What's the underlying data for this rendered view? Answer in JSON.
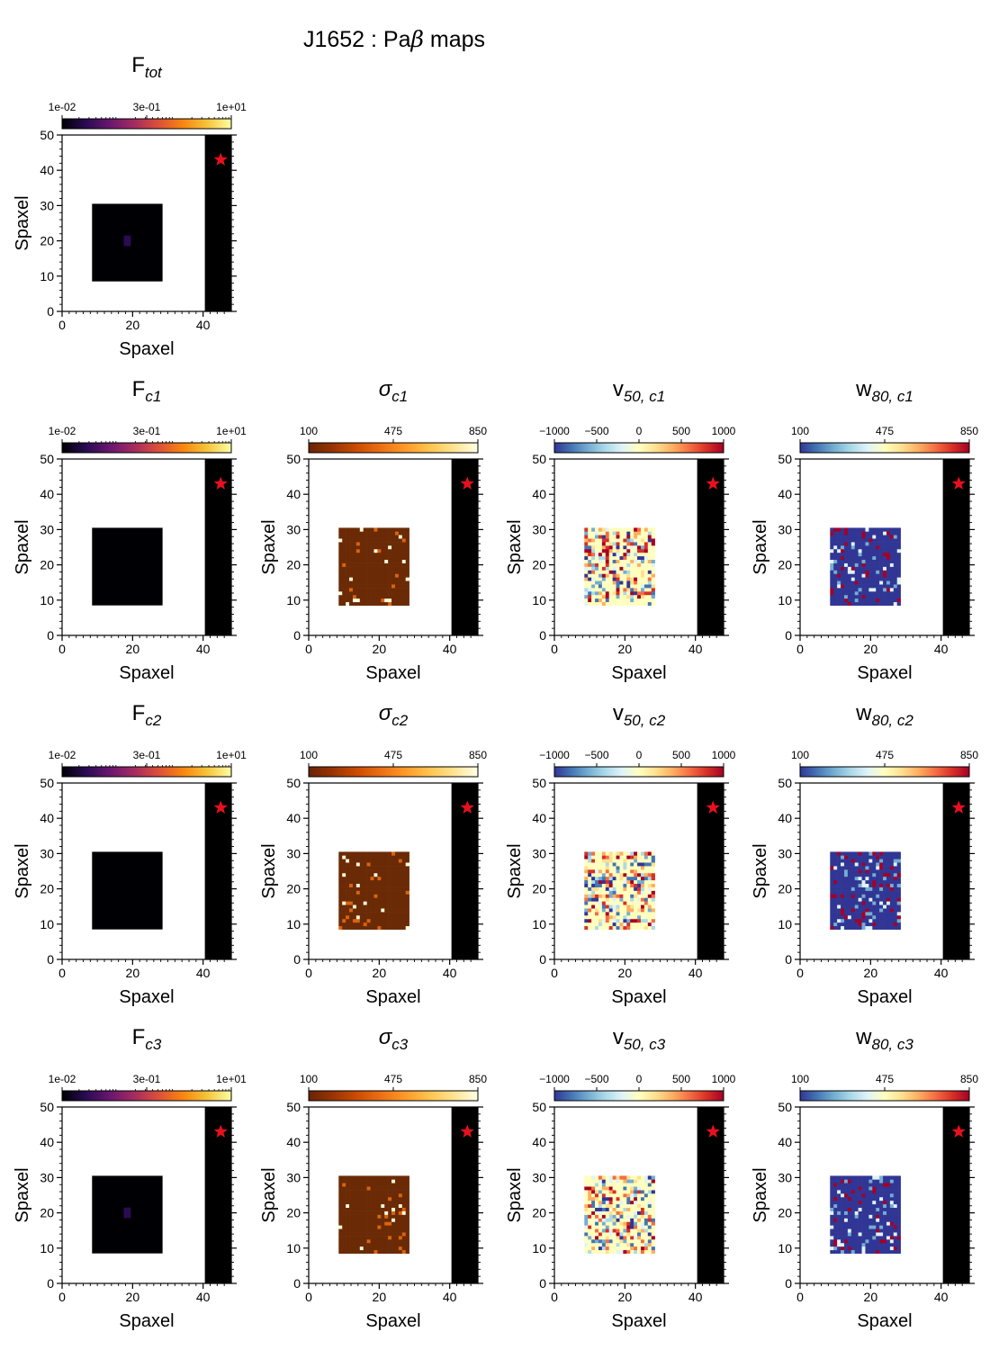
{
  "figure": {
    "title": "J1652 : Pa",
    "title_symbol": "β",
    "title_suffix": " maps"
  },
  "chart_data": [
    {
      "id": "ftot",
      "type": "heatmap",
      "title_main": "F",
      "title_sub": "tot",
      "title_italic": false,
      "colormap": "inferno",
      "colorbar_ticks": [
        "1e-02",
        "3e-01",
        "1e+01"
      ],
      "log_scale": true,
      "xlabel": "Spaxel",
      "ylabel": "Spaxel",
      "xlim": [
        0,
        48
      ],
      "ylim": [
        0,
        50
      ],
      "xticks": [
        "0",
        "20",
        "40"
      ],
      "yticks": [
        "0",
        "10",
        "20",
        "30",
        "40",
        "50"
      ],
      "data_region": {
        "x": [
          9,
          28
        ],
        "y": [
          9,
          30
        ]
      },
      "marker": {
        "symbol": "star",
        "x": 45,
        "y": 43,
        "color": "#e8101e"
      }
    },
    {
      "id": "fc1",
      "type": "heatmap",
      "title_main": "F",
      "title_sub": "c1",
      "title_italic": false,
      "colormap": "inferno",
      "colorbar_ticks": [
        "1e-02",
        "3e-01",
        "1e+01"
      ],
      "log_scale": true,
      "xlabel": "Spaxel",
      "ylabel": "Spaxel",
      "xlim": [
        0,
        48
      ],
      "ylim": [
        0,
        50
      ],
      "xticks": [
        "0",
        "20",
        "40"
      ],
      "yticks": [
        "0",
        "10",
        "20",
        "30",
        "40",
        "50"
      ],
      "data_region": {
        "x": [
          9,
          28
        ],
        "y": [
          9,
          30
        ]
      },
      "marker": {
        "symbol": "star",
        "x": 45,
        "y": 43,
        "color": "#e8101e"
      }
    },
    {
      "id": "sc1",
      "type": "heatmap",
      "title_main": "σ",
      "title_sub": "c1",
      "title_italic": true,
      "colormap": "YlOrBr_r",
      "colorbar_ticks": [
        "100",
        "475",
        "850"
      ],
      "log_scale": false,
      "xlabel": "Spaxel",
      "ylabel": "Spaxel",
      "xlim": [
        0,
        48
      ],
      "ylim": [
        0,
        50
      ],
      "xticks": [
        "0",
        "20",
        "40"
      ],
      "yticks": [
        "0",
        "10",
        "20",
        "30",
        "40",
        "50"
      ],
      "data_region": {
        "x": [
          9,
          28
        ],
        "y": [
          9,
          30
        ]
      },
      "marker": {
        "symbol": "star",
        "x": 45,
        "y": 43,
        "color": "#e8101e"
      }
    },
    {
      "id": "vc1",
      "type": "heatmap",
      "title_main": "v",
      "title_sub": "50, c1",
      "title_italic": false,
      "colormap": "RdYlBu_r",
      "colorbar_ticks": [
        "−1000",
        "−500",
        "0",
        "500",
        "1000"
      ],
      "log_scale": false,
      "xlabel": "Spaxel",
      "ylabel": "Spaxel",
      "xlim": [
        0,
        48
      ],
      "ylim": [
        0,
        50
      ],
      "xticks": [
        "0",
        "20",
        "40"
      ],
      "yticks": [
        "0",
        "10",
        "20",
        "30",
        "40",
        "50"
      ],
      "data_region": {
        "x": [
          9,
          28
        ],
        "y": [
          9,
          30
        ]
      },
      "marker": {
        "symbol": "star",
        "x": 45,
        "y": 43,
        "color": "#e8101e"
      }
    },
    {
      "id": "wc1",
      "type": "heatmap",
      "title_main": "w",
      "title_sub": "80, c1",
      "title_italic": false,
      "colormap": "RdYlBu_r",
      "colorbar_ticks": [
        "100",
        "475",
        "850"
      ],
      "log_scale": false,
      "xlabel": "Spaxel",
      "ylabel": "Spaxel",
      "xlim": [
        0,
        48
      ],
      "ylim": [
        0,
        50
      ],
      "xticks": [
        "0",
        "20",
        "40"
      ],
      "yticks": [
        "0",
        "10",
        "20",
        "30",
        "40",
        "50"
      ],
      "data_region": {
        "x": [
          9,
          28
        ],
        "y": [
          9,
          30
        ]
      },
      "marker": {
        "symbol": "star",
        "x": 45,
        "y": 43,
        "color": "#e8101e"
      }
    },
    {
      "id": "fc2",
      "type": "heatmap",
      "title_main": "F",
      "title_sub": "c2",
      "title_italic": false,
      "colormap": "inferno",
      "colorbar_ticks": [
        "1e-02",
        "3e-01",
        "1e+01"
      ],
      "log_scale": true,
      "xlabel": "Spaxel",
      "ylabel": "Spaxel",
      "xlim": [
        0,
        48
      ],
      "ylim": [
        0,
        50
      ],
      "xticks": [
        "0",
        "20",
        "40"
      ],
      "yticks": [
        "0",
        "10",
        "20",
        "30",
        "40",
        "50"
      ],
      "data_region": {
        "x": [
          9,
          28
        ],
        "y": [
          9,
          30
        ]
      },
      "marker": {
        "symbol": "star",
        "x": 45,
        "y": 43,
        "color": "#e8101e"
      }
    },
    {
      "id": "sc2",
      "type": "heatmap",
      "title_main": "σ",
      "title_sub": "c2",
      "title_italic": true,
      "colormap": "YlOrBr_r",
      "colorbar_ticks": [
        "100",
        "475",
        "850"
      ],
      "log_scale": false,
      "xlabel": "Spaxel",
      "ylabel": "Spaxel",
      "xlim": [
        0,
        48
      ],
      "ylim": [
        0,
        50
      ],
      "xticks": [
        "0",
        "20",
        "40"
      ],
      "yticks": [
        "0",
        "10",
        "20",
        "30",
        "40",
        "50"
      ],
      "data_region": {
        "x": [
          9,
          28
        ],
        "y": [
          9,
          30
        ]
      },
      "marker": {
        "symbol": "star",
        "x": 45,
        "y": 43,
        "color": "#e8101e"
      }
    },
    {
      "id": "vc2",
      "type": "heatmap",
      "title_main": "v",
      "title_sub": "50, c2",
      "title_italic": false,
      "colormap": "RdYlBu_r",
      "colorbar_ticks": [
        "−1000",
        "−500",
        "0",
        "500",
        "1000"
      ],
      "log_scale": false,
      "xlabel": "Spaxel",
      "ylabel": "Spaxel",
      "xlim": [
        0,
        48
      ],
      "ylim": [
        0,
        50
      ],
      "xticks": [
        "0",
        "20",
        "40"
      ],
      "yticks": [
        "0",
        "10",
        "20",
        "30",
        "40",
        "50"
      ],
      "data_region": {
        "x": [
          9,
          28
        ],
        "y": [
          9,
          30
        ]
      },
      "marker": {
        "symbol": "star",
        "x": 45,
        "y": 43,
        "color": "#e8101e"
      }
    },
    {
      "id": "wc2",
      "type": "heatmap",
      "title_main": "w",
      "title_sub": "80, c2",
      "title_italic": false,
      "colormap": "RdYlBu_r",
      "colorbar_ticks": [
        "100",
        "475",
        "850"
      ],
      "log_scale": false,
      "xlabel": "Spaxel",
      "ylabel": "Spaxel",
      "xlim": [
        0,
        48
      ],
      "ylim": [
        0,
        50
      ],
      "xticks": [
        "0",
        "20",
        "40"
      ],
      "yticks": [
        "0",
        "10",
        "20",
        "30",
        "40",
        "50"
      ],
      "data_region": {
        "x": [
          9,
          28
        ],
        "y": [
          9,
          30
        ]
      },
      "marker": {
        "symbol": "star",
        "x": 45,
        "y": 43,
        "color": "#e8101e"
      }
    },
    {
      "id": "fc3",
      "type": "heatmap",
      "title_main": "F",
      "title_sub": "c3",
      "title_italic": false,
      "colormap": "inferno",
      "colorbar_ticks": [
        "1e-02",
        "3e-01",
        "1e+01"
      ],
      "log_scale": true,
      "xlabel": "Spaxel",
      "ylabel": "Spaxel",
      "xlim": [
        0,
        48
      ],
      "ylim": [
        0,
        50
      ],
      "xticks": [
        "0",
        "20",
        "40"
      ],
      "yticks": [
        "0",
        "10",
        "20",
        "30",
        "40",
        "50"
      ],
      "data_region": {
        "x": [
          9,
          28
        ],
        "y": [
          9,
          30
        ]
      },
      "marker": {
        "symbol": "star",
        "x": 45,
        "y": 43,
        "color": "#e8101e"
      }
    },
    {
      "id": "sc3",
      "type": "heatmap",
      "title_main": "σ",
      "title_sub": "c3",
      "title_italic": true,
      "colormap": "YlOrBr_r",
      "colorbar_ticks": [
        "100",
        "475",
        "850"
      ],
      "log_scale": false,
      "xlabel": "Spaxel",
      "ylabel": "Spaxel",
      "xlim": [
        0,
        48
      ],
      "ylim": [
        0,
        50
      ],
      "xticks": [
        "0",
        "20",
        "40"
      ],
      "yticks": [
        "0",
        "10",
        "20",
        "30",
        "40",
        "50"
      ],
      "data_region": {
        "x": [
          9,
          28
        ],
        "y": [
          9,
          30
        ]
      },
      "marker": {
        "symbol": "star",
        "x": 45,
        "y": 43,
        "color": "#e8101e"
      }
    },
    {
      "id": "vc3",
      "type": "heatmap",
      "title_main": "v",
      "title_sub": "50, c3",
      "title_italic": false,
      "colormap": "RdYlBu_r",
      "colorbar_ticks": [
        "−1000",
        "−500",
        "0",
        "500",
        "1000"
      ],
      "log_scale": false,
      "xlabel": "Spaxel",
      "ylabel": "Spaxel",
      "xlim": [
        0,
        48
      ],
      "ylim": [
        0,
        50
      ],
      "xticks": [
        "0",
        "20",
        "40"
      ],
      "yticks": [
        "0",
        "10",
        "20",
        "30",
        "40",
        "50"
      ],
      "data_region": {
        "x": [
          9,
          28
        ],
        "y": [
          9,
          30
        ]
      },
      "marker": {
        "symbol": "star",
        "x": 45,
        "y": 43,
        "color": "#e8101e"
      }
    },
    {
      "id": "wc3",
      "type": "heatmap",
      "title_main": "w",
      "title_sub": "80, c3",
      "title_italic": false,
      "colormap": "RdYlBu_r",
      "colorbar_ticks": [
        "100",
        "475",
        "850"
      ],
      "log_scale": false,
      "xlabel": "Spaxel",
      "ylabel": "Spaxel",
      "xlim": [
        0,
        48
      ],
      "ylim": [
        0,
        50
      ],
      "xticks": [
        "0",
        "20",
        "40"
      ],
      "yticks": [
        "0",
        "10",
        "20",
        "30",
        "40",
        "50"
      ],
      "data_region": {
        "x": [
          9,
          28
        ],
        "y": [
          9,
          30
        ]
      },
      "marker": {
        "symbol": "star",
        "x": 45,
        "y": 43,
        "color": "#e8101e"
      }
    }
  ],
  "colormaps": {
    "inferno": [
      "#000004",
      "#2a0b54",
      "#6b176e",
      "#a52c60",
      "#dc5039",
      "#f8850f",
      "#f6c43b",
      "#fcffa4"
    ],
    "YlOrBr_r": [
      "#662506",
      "#993404",
      "#cc4c02",
      "#ec7014",
      "#fe9929",
      "#fec44f",
      "#fee391",
      "#ffffe5"
    ],
    "RdYlBu_r": [
      "#313695",
      "#4575b4",
      "#74add1",
      "#abd9e9",
      "#e0f3f8",
      "#ffffbf",
      "#fee090",
      "#fdae61",
      "#f46d43",
      "#d73027",
      "#a50026"
    ]
  }
}
